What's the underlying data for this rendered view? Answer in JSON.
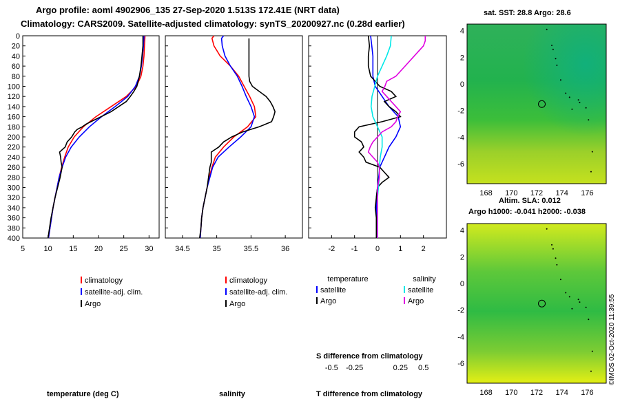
{
  "header": {
    "line1": "Argo profile: aoml 4902906_135 27-Sep-2020 1.513S 172.41E (NRT data)",
    "line2": "Climatology: CARS2009. Satellite-adjusted climatology: synTS_20200927.nc (0.28d earlier)"
  },
  "colors": {
    "climatology": "#ff0000",
    "satellite": "#0000ff",
    "argo": "#000000",
    "sat_temp_diff": "#00e8e8",
    "sat_sal_diff": "#e000e0"
  },
  "chart_data": [
    {
      "type": "line",
      "panel": "temperature",
      "title": "",
      "xlabel": "temperature (deg C)",
      "ylabel": "",
      "xlim": [
        5,
        32
      ],
      "ylim": [
        400,
        0
      ],
      "xticks": [
        5,
        10,
        15,
        20,
        25,
        30
      ],
      "yticks": [
        0,
        20,
        40,
        60,
        80,
        100,
        120,
        140,
        160,
        180,
        200,
        220,
        240,
        260,
        280,
        300,
        320,
        340,
        360,
        380,
        400
      ],
      "legend": [
        "climatology",
        "satellite-adj. clim.",
        "Argo"
      ],
      "series": [
        {
          "name": "climatology",
          "color": "#ff0000",
          "depth": [
            0,
            20,
            40,
            60,
            80,
            100,
            120,
            140,
            160,
            180,
            200,
            220,
            240,
            260,
            280,
            300,
            320,
            340,
            360,
            380,
            400
          ],
          "values": [
            29.2,
            29.1,
            29.0,
            28.8,
            28.4,
            27.5,
            25.5,
            22.5,
            19.5,
            17.0,
            15.2,
            14.0,
            13.3,
            12.7,
            12.2,
            11.8,
            11.4,
            11.0,
            10.7,
            10.4,
            10.1
          ]
        },
        {
          "name": "satellite-adj. clim.",
          "color": "#0000ff",
          "depth": [
            0,
            20,
            40,
            60,
            80,
            100,
            120,
            140,
            160,
            180,
            200,
            220,
            240,
            260,
            280,
            300,
            320,
            340,
            360,
            380,
            400
          ],
          "values": [
            29.0,
            28.9,
            28.7,
            28.5,
            28.1,
            27.3,
            25.8,
            23.3,
            20.6,
            18.2,
            16.2,
            14.6,
            13.5,
            12.8,
            12.2,
            11.8,
            11.4,
            11.0,
            10.7,
            10.4,
            10.1
          ]
        },
        {
          "name": "Argo",
          "color": "#000000",
          "depth": [
            0,
            20,
            40,
            60,
            80,
            100,
            110,
            120,
            130,
            140,
            150,
            160,
            170,
            175,
            180,
            185,
            190,
            200,
            210,
            220,
            230,
            240,
            250,
            260,
            280,
            300,
            320,
            340,
            360,
            380,
            400
          ],
          "values": [
            28.8,
            28.8,
            28.6,
            28.4,
            28.1,
            27.6,
            27.0,
            26.3,
            25.5,
            24.0,
            22.5,
            20.5,
            18.5,
            17.5,
            16.8,
            15.8,
            15.3,
            14.7,
            13.8,
            13.4,
            12.3,
            12.5,
            12.6,
            12.8,
            12.4,
            11.9,
            11.4,
            11.0,
            10.6,
            10.3,
            10.0
          ]
        }
      ]
    },
    {
      "type": "line",
      "panel": "salinity",
      "title": "",
      "xlabel": "salinity",
      "ylabel": "",
      "xlim": [
        34.25,
        36.25
      ],
      "ylim": [
        400,
        0
      ],
      "xticks": [
        34.5,
        35,
        35.5,
        36
      ],
      "legend": [
        "climatology",
        "satellite-adj. clim.",
        "Argo"
      ],
      "series": [
        {
          "name": "climatology",
          "color": "#ff0000",
          "depth": [
            0,
            5,
            20,
            40,
            60,
            80,
            100,
            120,
            140,
            160,
            180,
            200,
            220,
            240,
            260,
            280,
            300,
            320,
            340,
            360,
            380,
            400
          ],
          "values": [
            34.96,
            34.93,
            34.96,
            35.05,
            35.2,
            35.32,
            35.4,
            35.48,
            35.55,
            35.57,
            35.45,
            35.25,
            35.1,
            34.98,
            34.93,
            34.89,
            34.86,
            34.83,
            34.8,
            34.78,
            34.77,
            34.76
          ]
        },
        {
          "name": "satellite-adj. clim.",
          "color": "#0000ff",
          "depth": [
            0,
            5,
            20,
            40,
            60,
            80,
            100,
            120,
            140,
            160,
            180,
            200,
            220,
            240,
            260,
            280,
            300,
            320,
            340,
            360,
            380,
            400
          ],
          "values": [
            35.1,
            35.07,
            35.08,
            35.12,
            35.2,
            35.3,
            35.37,
            35.43,
            35.5,
            35.55,
            35.5,
            35.35,
            35.18,
            35.02,
            34.94,
            34.9,
            34.86,
            34.83,
            34.8,
            34.78,
            34.77,
            34.76
          ]
        },
        {
          "name": "Argo",
          "color": "#000000",
          "depth": [
            5,
            80,
            90,
            100,
            110,
            120,
            130,
            140,
            150,
            160,
            170,
            180,
            190,
            200,
            210,
            220,
            230,
            240,
            250,
            260,
            280,
            300,
            320,
            340,
            360,
            380,
            400
          ],
          "values": [
            35.47,
            35.47,
            35.48,
            35.52,
            35.62,
            35.72,
            35.78,
            35.82,
            35.85,
            35.83,
            35.8,
            35.62,
            35.38,
            35.22,
            35.1,
            35.03,
            34.92,
            34.92,
            34.92,
            34.9,
            34.88,
            34.86,
            34.83,
            34.8,
            34.78,
            34.77,
            34.75
          ]
        }
      ]
    },
    {
      "type": "line",
      "panel": "difference",
      "title": "",
      "xlabel": "T difference from climatology",
      "xlabel2": "S difference from climatology",
      "xlim": [
        -3,
        3
      ],
      "ylim": [
        400,
        0
      ],
      "xticks": [
        -2,
        -1,
        0,
        1,
        2
      ],
      "x2lim": [
        -0.75,
        0.75
      ],
      "x2ticks": [
        -0.5,
        -0.25,
        0,
        0.25,
        0.5
      ],
      "legend_temperature": {
        "title": "temperature",
        "items": [
          "satellite",
          "Argo"
        ]
      },
      "legend_salinity": {
        "title": "salinity",
        "items": [
          "satellite",
          "Argo"
        ]
      },
      "series": [
        {
          "name": "temperature satellite",
          "color": "#0000ff",
          "axis": "T",
          "depth": [
            0,
            20,
            40,
            60,
            80,
            100,
            120,
            140,
            160,
            180,
            200,
            220,
            240,
            260,
            280,
            300,
            320,
            340,
            360,
            380,
            400
          ],
          "values": [
            -0.3,
            -0.25,
            -0.2,
            -0.2,
            -0.2,
            -0.1,
            0.2,
            0.5,
            0.9,
            1.0,
            0.8,
            0.5,
            0.3,
            0.1,
            0.05,
            0,
            -0.05,
            -0.05,
            -0.05,
            -0.05,
            -0.05
          ]
        },
        {
          "name": "temperature Argo",
          "color": "#000000",
          "axis": "T",
          "depth": [
            0,
            20,
            40,
            60,
            80,
            100,
            110,
            120,
            130,
            140,
            150,
            160,
            170,
            180,
            190,
            200,
            210,
            220,
            230,
            240,
            250,
            260,
            270,
            280,
            290,
            300,
            320,
            340,
            360,
            380,
            400
          ],
          "values": [
            -0.4,
            -0.35,
            -0.4,
            -0.4,
            -0.3,
            0.1,
            0.6,
            0.8,
            0.3,
            0.5,
            0.8,
            1.0,
            0.2,
            -0.8,
            -1.0,
            -1.0,
            -0.7,
            -0.6,
            -0.8,
            -0.6,
            -0.5,
            0.1,
            0.3,
            0.5,
            0.2,
            0,
            -0.05,
            -0.1,
            -0.05,
            -0.05,
            -0.05
          ]
        },
        {
          "name": "salinity satellite",
          "color": "#00e8e8",
          "axis": "S",
          "depth": [
            0,
            20,
            40,
            60,
            80,
            100,
            120,
            140,
            160,
            180,
            200,
            220,
            240,
            260,
            280,
            300,
            320,
            340,
            360,
            380,
            400
          ],
          "values": [
            0.15,
            0.14,
            0.1,
            0.05,
            0,
            -0.03,
            -0.06,
            -0.07,
            -0.05,
            0,
            0.05,
            0.05,
            0.03,
            0.02,
            0.02,
            0.01,
            0,
            0,
            0,
            0,
            0
          ]
        },
        {
          "name": "salinity Argo",
          "color": "#e000e0",
          "axis": "S",
          "depth": [
            0,
            10,
            20,
            40,
            60,
            80,
            90,
            100,
            110,
            120,
            130,
            140,
            150,
            160,
            170,
            180,
            190,
            200,
            210,
            220,
            230,
            240,
            250,
            260,
            280,
            300,
            320,
            340,
            360,
            380,
            400
          ],
          "values": [
            0.52,
            0.52,
            0.5,
            0.4,
            0.3,
            0.2,
            0.1,
            0.08,
            0.05,
            0.1,
            0.15,
            0.2,
            0.25,
            0.22,
            0.2,
            0.15,
            0.05,
            0,
            -0.05,
            -0.08,
            -0.1,
            -0.05,
            0,
            0.02,
            0.02,
            0,
            0,
            0,
            0,
            0,
            0
          ]
        }
      ]
    },
    {
      "type": "heatmap",
      "panel": "map-sst",
      "title": "sat. SST: 28.8 Argo: 28.6",
      "xlim": [
        166.5,
        177.5
      ],
      "ylim": [
        -7.5,
        4.5
      ],
      "xticks": [
        168,
        170,
        172,
        174,
        176
      ],
      "yticks": [
        4,
        2,
        0,
        -2,
        -4,
        -6
      ],
      "marker": {
        "lon": 172.41,
        "lat": -1.513
      }
    },
    {
      "type": "heatmap",
      "panel": "map-sla",
      "title": "Altim. SLA: 0.012",
      "subtitle": "Argo h1000: -0.041 h2000: -0.038",
      "xlim": [
        166.5,
        177.5
      ],
      "ylim": [
        -7.5,
        4.5
      ],
      "xticks": [
        168,
        170,
        172,
        174,
        176
      ],
      "yticks": [
        4,
        2,
        0,
        -2,
        -4,
        -6
      ],
      "marker": {
        "lon": 172.41,
        "lat": -1.513
      }
    }
  ],
  "legend_labels": {
    "clim": "climatology",
    "sat": "satellite-adj. clim.",
    "argo": "Argo",
    "temp_title": "temperature",
    "sal_title": "salinity",
    "satellite": "satellite",
    "argo2": "Argo"
  },
  "stamp": "©IMOS 02-Oct-2020 11:39:55"
}
